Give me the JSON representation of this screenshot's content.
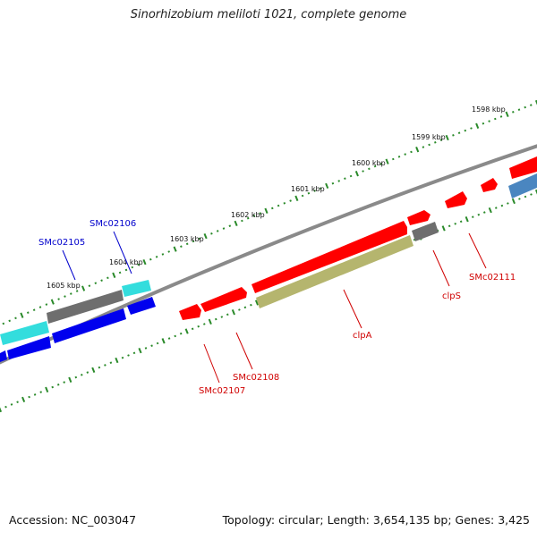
{
  "title": "Sinorhizobium meliloti 1021, complete genome",
  "accession": "Accession: NC_003047",
  "summary": "Topology: circular; Length: 3,654,135 bp; Genes: 3,425",
  "colors": {
    "background": "#ffffff",
    "backbone": "#8a8a8a",
    "ruler_dot": "#2a8a2a",
    "forward_gene": "#ff0000",
    "reverse_gene": "#0000ee",
    "cyan_gene": "#33dddd",
    "grey_gene": "#6e6e6e",
    "olive_gene": "#b5b56e",
    "steel_gene": "#4a86c0",
    "label_red": "#d00000",
    "label_blue": "#0000cc"
  },
  "ruler_labels": [
    "1598 kbp",
    "1599 kbp",
    "1600 kbp",
    "1601 kbp",
    "1602 kbp",
    "1603 kbp",
    "1604 kbp",
    "1605 kbp"
  ],
  "gene_labels": {
    "smc02105": "SMc02105",
    "smc02106": "SMc02106",
    "smc02107": "SMc02107",
    "smc02108": "SMc02108",
    "clpa": "clpA",
    "clps": "clpS",
    "smc02111": "SMc02111"
  }
}
